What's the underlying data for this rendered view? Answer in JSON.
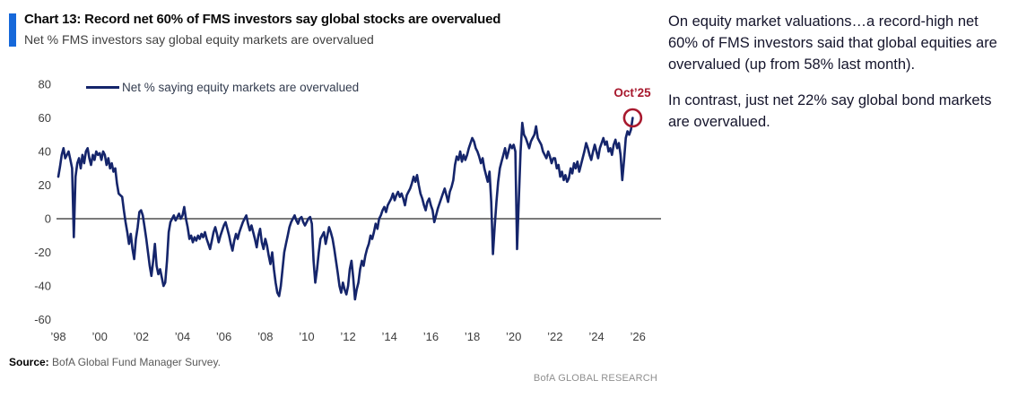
{
  "header": {
    "title": "Chart 13: Record net 60% of FMS investors say global stocks are overvalued",
    "subtitle": "Net % FMS investors say global equity markets are overvalued"
  },
  "commentary": {
    "paragraph1": "On equity market valuations…a record-high net 60% of FMS investors said that global equities are overvalued (up from 58% last month).",
    "paragraph2": "In contrast, just net 22% say global bond markets are overvalued."
  },
  "footer": {
    "source_label": "Source:",
    "source_text": " BofA Global Fund Manager Survey.",
    "brand": "BofA GLOBAL RESEARCH"
  },
  "chart_data": {
    "type": "line",
    "title": "Net % FMS investors say global equity markets are overvalued",
    "legend": "Net % saying equity markets are overvalued",
    "line_color": "#15256b",
    "zero_line_color": "#2b2b2b",
    "annotation": {
      "label": "Oct’25",
      "color": "#a8192e",
      "value": 60
    },
    "x_start_year": 1998,
    "frequency": "monthly",
    "ylim": [
      -60,
      80
    ],
    "grid": false,
    "legend_position": "top-left-inside",
    "y_ticks": [
      80,
      60,
      40,
      20,
      0,
      -20,
      -40,
      -60
    ],
    "x_ticks": [
      {
        "label": "’98",
        "year": 1998
      },
      {
        "label": "’00",
        "year": 2000
      },
      {
        "label": "’02",
        "year": 2002
      },
      {
        "label": "’04",
        "year": 2004
      },
      {
        "label": "’06",
        "year": 2006
      },
      {
        "label": "’08",
        "year": 2008
      },
      {
        "label": "’10",
        "year": 2010
      },
      {
        "label": "’12",
        "year": 2012
      },
      {
        "label": "’14",
        "year": 2014
      },
      {
        "label": "’16",
        "year": 2016
      },
      {
        "label": "’18",
        "year": 2018
      },
      {
        "label": "’20",
        "year": 2020
      },
      {
        "label": "’22",
        "year": 2022
      },
      {
        "label": "’24",
        "year": 2024
      },
      {
        "label": "’26",
        "year": 2026
      }
    ],
    "values": [
      25,
      31,
      38,
      42,
      36,
      38,
      40,
      35,
      30,
      -11,
      25,
      33,
      36,
      30,
      38,
      33,
      40,
      42,
      36,
      32,
      38,
      35,
      40,
      38,
      39,
      35,
      40,
      38,
      32,
      36,
      30,
      33,
      28,
      30,
      21,
      15,
      14,
      13,
      5,
      -2,
      -8,
      -15,
      -9,
      -18,
      -24,
      -12,
      -5,
      4,
      5,
      2,
      -5,
      -12,
      -20,
      -28,
      -34,
      -25,
      -15,
      -28,
      -33,
      -30,
      -35,
      -40,
      -38,
      -25,
      -8,
      -2,
      0,
      2,
      -1,
      1,
      3,
      0,
      2,
      7,
      0,
      -5,
      -12,
      -10,
      -14,
      -11,
      -13,
      -10,
      -12,
      -9,
      -11,
      -8,
      -12,
      -15,
      -18,
      -13,
      -8,
      -5,
      -9,
      -14,
      -10,
      -7,
      -4,
      -2,
      -6,
      -10,
      -15,
      -19,
      -13,
      -9,
      -12,
      -8,
      -5,
      -2,
      0,
      2,
      -3,
      -7,
      -4,
      -8,
      -12,
      -17,
      -10,
      -6,
      -14,
      -18,
      -12,
      -16,
      -22,
      -27,
      -20,
      -30,
      -38,
      -44,
      -46,
      -40,
      -30,
      -20,
      -15,
      -10,
      -5,
      -2,
      0,
      2,
      -1,
      -3,
      0,
      1,
      -2,
      -4,
      -2,
      0,
      1,
      -3,
      -25,
      -38,
      -30,
      -20,
      -12,
      -10,
      -8,
      -15,
      -10,
      -5,
      -8,
      -12,
      -18,
      -25,
      -32,
      -40,
      -44,
      -38,
      -42,
      -45,
      -40,
      -30,
      -25,
      -35,
      -48,
      -42,
      -38,
      -30,
      -25,
      -28,
      -22,
      -18,
      -15,
      -10,
      -12,
      -8,
      -3,
      -6,
      0,
      2,
      5,
      7,
      4,
      8,
      10,
      12,
      15,
      11,
      14,
      16,
      13,
      15,
      12,
      8,
      14,
      16,
      18,
      21,
      25,
      22,
      26,
      20,
      15,
      12,
      8,
      5,
      10,
      12,
      8,
      5,
      -2,
      2,
      6,
      9,
      12,
      15,
      18,
      14,
      10,
      16,
      19,
      23,
      32,
      37,
      35,
      40,
      34,
      38,
      35,
      38,
      42,
      45,
      48,
      46,
      42,
      40,
      37,
      33,
      36,
      30,
      26,
      22,
      28,
      10,
      -21,
      -5,
      10,
      22,
      30,
      34,
      38,
      42,
      36,
      40,
      44,
      42,
      44,
      40,
      -18,
      12,
      40,
      57,
      50,
      48,
      45,
      42,
      46,
      48,
      50,
      55,
      48,
      46,
      44,
      40,
      38,
      36,
      40,
      37,
      33,
      36,
      36,
      30,
      32,
      25,
      28,
      23,
      26,
      22,
      24,
      30,
      27,
      33,
      30,
      34,
      28,
      32,
      36,
      40,
      45,
      42,
      38,
      35,
      40,
      44,
      40,
      36,
      42,
      45,
      48,
      44,
      46,
      40,
      42,
      38,
      44,
      47,
      42,
      45,
      38,
      23,
      35,
      48,
      52,
      50,
      53,
      60
    ],
    "last_point": {
      "label": "Oct’25",
      "value": 60
    }
  }
}
